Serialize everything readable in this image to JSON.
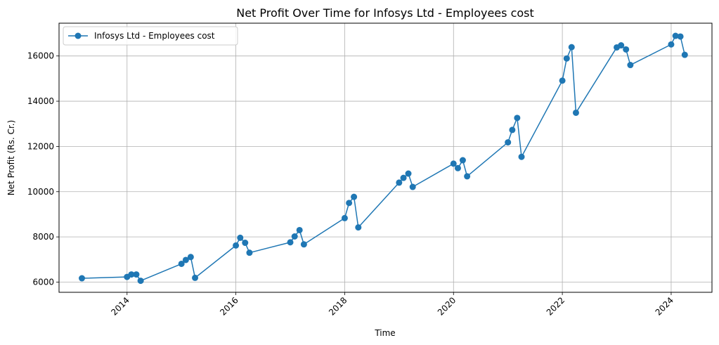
{
  "chart_data": {
    "type": "line",
    "title": "Net Profit Over Time for Infosys Ltd - Employees cost",
    "xlabel": "Time",
    "ylabel": "Net Profit (Rs. Cr.)",
    "xlim": [
      2012.75,
      2024.75
    ],
    "ylim": [
      5550,
      17450
    ],
    "x_ticks": [
      2014,
      2016,
      2018,
      2020,
      2022,
      2024
    ],
    "x_tick_labels": [
      "2014",
      "2016",
      "2018",
      "2020",
      "2022",
      "2024"
    ],
    "y_ticks": [
      6000,
      8000,
      10000,
      12000,
      14000,
      16000
    ],
    "y_tick_labels": [
      "6000",
      "8000",
      "10000",
      "12000",
      "14000",
      "16000"
    ],
    "grid": true,
    "legend_position": "top-left",
    "series": [
      {
        "name": "Infosys Ltd - Employees cost",
        "color": "#1f77b4",
        "x": [
          2013.17,
          2014.0,
          2014.08,
          2014.17,
          2014.25,
          2015.0,
          2015.08,
          2015.17,
          2015.25,
          2016.0,
          2016.08,
          2016.17,
          2016.25,
          2017.0,
          2017.08,
          2017.17,
          2017.25,
          2018.0,
          2018.08,
          2018.17,
          2018.25,
          2019.0,
          2019.08,
          2019.17,
          2019.25,
          2020.0,
          2020.08,
          2020.17,
          2020.25,
          2021.0,
          2021.08,
          2021.17,
          2021.25,
          2022.0,
          2022.08,
          2022.17,
          2022.25,
          2023.0,
          2023.08,
          2023.17,
          2023.25,
          2024.0,
          2024.08,
          2024.17,
          2024.25
        ],
        "y": [
          6170,
          6230,
          6340,
          6340,
          6060,
          6810,
          6980,
          7110,
          6190,
          7620,
          7960,
          7740,
          7300,
          7760,
          8020,
          8300,
          7670,
          8830,
          9500,
          9770,
          8420,
          10400,
          10610,
          10800,
          10210,
          11240,
          11040,
          11390,
          10680,
          12180,
          12730,
          13260,
          11540,
          14910,
          15890,
          16390,
          13490,
          16380,
          16470,
          16290,
          15600,
          16510,
          16890,
          16860,
          16050
        ]
      }
    ]
  }
}
